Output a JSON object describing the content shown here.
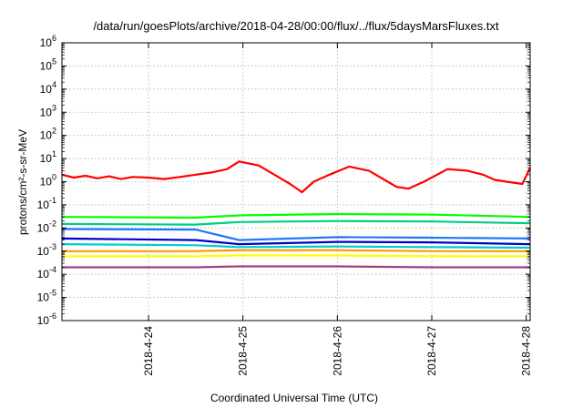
{
  "chart_data": {
    "type": "line",
    "title": "/data/run/goesPlots/archive/2018-04-28/00:00/flux/../flux/5daysMarsFluxes.txt",
    "xlabel": "Coordinated Universal Time (UTC)",
    "ylabel": "protons/cm²-s-sr-MeV",
    "y_scale": "log",
    "ylim": [
      1e-06,
      1000000.0
    ],
    "y_ticks": [
      {
        "base": "10",
        "exp": "-6"
      },
      {
        "base": "10",
        "exp": "-5"
      },
      {
        "base": "10",
        "exp": "-4"
      },
      {
        "base": "10",
        "exp": "-3"
      },
      {
        "base": "10",
        "exp": "-2"
      },
      {
        "base": "10",
        "exp": "-1"
      },
      {
        "base": "10",
        "exp": "0"
      },
      {
        "base": "10",
        "exp": "1"
      },
      {
        "base": "10",
        "exp": "2"
      },
      {
        "base": "10",
        "exp": "3"
      },
      {
        "base": "10",
        "exp": "4"
      },
      {
        "base": "10",
        "exp": "5"
      },
      {
        "base": "10",
        "exp": "6"
      }
    ],
    "xlim": [
      "2018-04-23T02:00",
      "2018-04-28T01:00"
    ],
    "x_ticks": [
      "2018-4-24",
      "2018-4-25",
      "2018-4-26",
      "2018-4-27",
      "2018-4-28"
    ],
    "grid": true,
    "series": [
      {
        "color": "#ff0000",
        "x": [
          "2018-04-23T02:00",
          "2018-04-23T05:00",
          "2018-04-23T08:00",
          "2018-04-23T11:00",
          "2018-04-23T14:00",
          "2018-04-23T17:00",
          "2018-04-23T20:00",
          "2018-04-24T00:00",
          "2018-04-24T04:00",
          "2018-04-24T08:00",
          "2018-04-24T12:00",
          "2018-04-24T16:00",
          "2018-04-24T20:00",
          "2018-04-24T23:00",
          "2018-04-25T04:00",
          "2018-04-25T08:00",
          "2018-04-25T12:00",
          "2018-04-25T15:00",
          "2018-04-25T18:00",
          "2018-04-25T22:00",
          "2018-04-26T03:00",
          "2018-04-26T08:00",
          "2018-04-26T12:00",
          "2018-04-26T15:00",
          "2018-04-26T18:00",
          "2018-04-26T22:00",
          "2018-04-27T04:00",
          "2018-04-27T09:00",
          "2018-04-27T13:00",
          "2018-04-27T16:00",
          "2018-04-27T19:00",
          "2018-04-27T23:00",
          "2018-04-28T01:00"
        ],
        "values": [
          2.0,
          1.5,
          1.8,
          1.4,
          1.7,
          1.3,
          1.6,
          1.5,
          1.3,
          1.6,
          2.0,
          2.5,
          3.5,
          7.5,
          5.0,
          2.0,
          0.8,
          0.35,
          1.0,
          2.0,
          4.5,
          3.0,
          1.2,
          0.6,
          0.5,
          1.0,
          3.5,
          3.0,
          2.0,
          1.2,
          1.0,
          0.8,
          4.0
        ]
      },
      {
        "color": "#00ff00",
        "x": [
          "2018-04-23T02:00",
          "2018-04-24T12:00",
          "2018-04-24T23:00",
          "2018-04-26T00:00",
          "2018-04-27T00:00",
          "2018-04-28T01:00"
        ],
        "values": [
          0.03,
          0.028,
          0.035,
          0.04,
          0.038,
          0.03
        ]
      },
      {
        "color": "#00cc88",
        "x": [
          "2018-04-23T02:00",
          "2018-04-24T12:00",
          "2018-04-24T23:00",
          "2018-04-26T00:00",
          "2018-04-27T00:00",
          "2018-04-28T01:00"
        ],
        "values": [
          0.015,
          0.014,
          0.018,
          0.02,
          0.019,
          0.016
        ]
      },
      {
        "color": "#1e78ff",
        "x": [
          "2018-04-23T02:00",
          "2018-04-24T12:00",
          "2018-04-24T23:00",
          "2018-04-26T00:00",
          "2018-04-27T00:00",
          "2018-04-28T01:00"
        ],
        "values": [
          0.009,
          0.0085,
          0.003,
          0.004,
          0.0038,
          0.0035
        ]
      },
      {
        "color": "#0000cc",
        "x": [
          "2018-04-23T02:00",
          "2018-04-24T12:00",
          "2018-04-24T23:00",
          "2018-04-26T00:00",
          "2018-04-27T00:00",
          "2018-04-28T01:00"
        ],
        "values": [
          0.0035,
          0.003,
          0.002,
          0.0025,
          0.0024,
          0.002
        ]
      },
      {
        "color": "#00cccc",
        "x": [
          "2018-04-23T02:00",
          "2018-04-24T12:00",
          "2018-04-24T23:00",
          "2018-04-26T00:00",
          "2018-04-27T00:00",
          "2018-04-28T01:00"
        ],
        "values": [
          0.002,
          0.0018,
          0.0015,
          0.0016,
          0.0015,
          0.0014
        ]
      },
      {
        "color": "#ff9900",
        "x": [
          "2018-04-23T02:00",
          "2018-04-24T12:00",
          "2018-04-24T23:00",
          "2018-04-26T00:00",
          "2018-04-27T00:00",
          "2018-04-28T01:00"
        ],
        "values": [
          0.001,
          0.001,
          0.0011,
          0.0011,
          0.001,
          0.001
        ]
      },
      {
        "color": "#ffff00",
        "x": [
          "2018-04-23T02:00",
          "2018-04-24T12:00",
          "2018-04-24T23:00",
          "2018-04-26T00:00",
          "2018-04-27T00:00",
          "2018-04-28T01:00"
        ],
        "values": [
          0.0006,
          0.0006,
          0.00065,
          0.00065,
          0.0006,
          0.0006
        ]
      },
      {
        "color": "#a04080",
        "x": [
          "2018-04-23T02:00",
          "2018-04-24T12:00",
          "2018-04-24T23:00",
          "2018-04-26T00:00",
          "2018-04-27T00:00",
          "2018-04-28T01:00"
        ],
        "values": [
          0.0002,
          0.0002,
          0.00022,
          0.00022,
          0.0002,
          0.0002
        ]
      }
    ]
  }
}
